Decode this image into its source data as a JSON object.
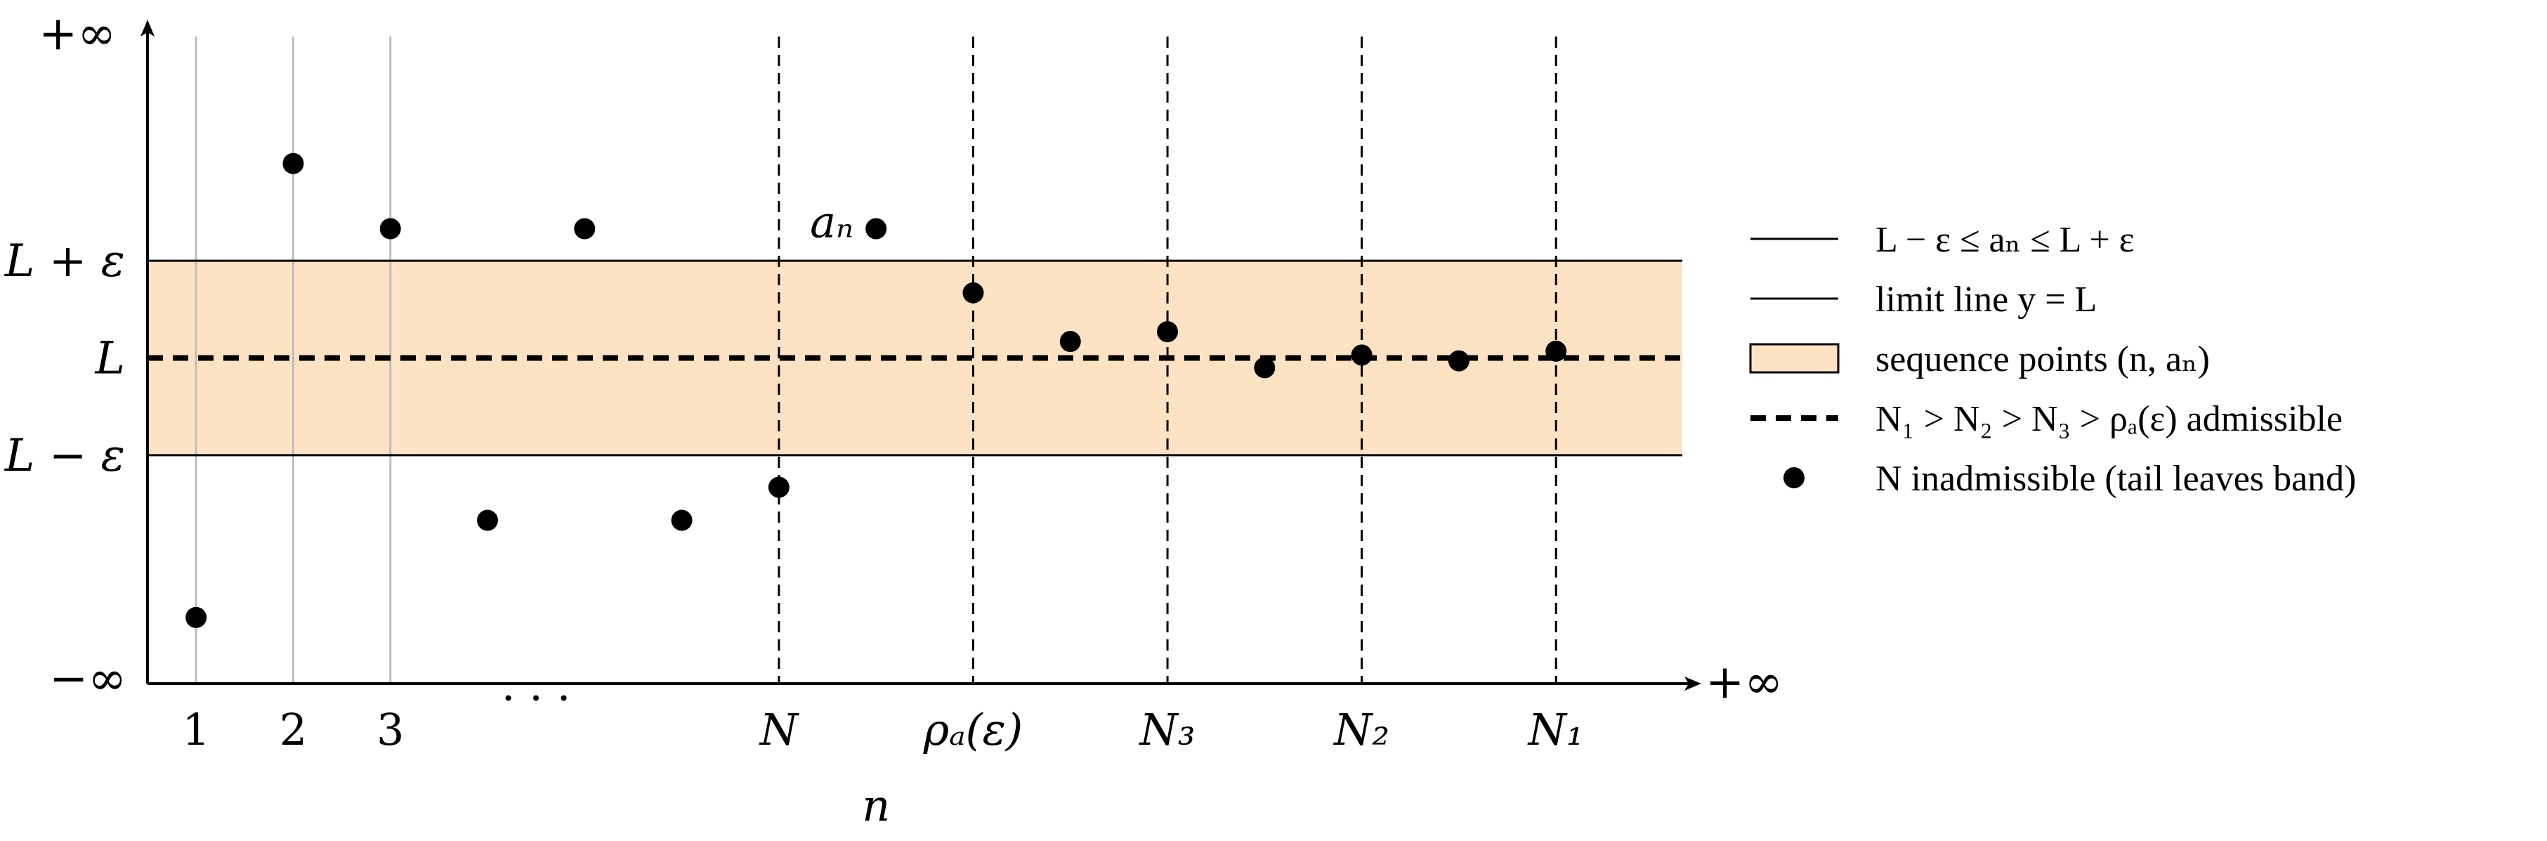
{
  "chart_data": {
    "type": "scatter",
    "colors": {
      "band_fill": "#fde2c4",
      "ink": "#000000",
      "gray_guides": "#bdbdbd"
    },
    "y_axis": {
      "top_label": "+∞",
      "bottom_label": "−∞",
      "ticks": [
        {
          "label": "L + ε",
          "value": 1
        },
        {
          "label": "L",
          "value": 0
        },
        {
          "label": "L − ε",
          "value": -1
        }
      ],
      "ylim": [
        -3.35,
        3.35
      ]
    },
    "x_axis": {
      "right_label": "+∞",
      "xlabel": "n",
      "xlim": [
        0.5,
        16.3
      ],
      "tick_labels": [
        {
          "label": "1",
          "x": 1
        },
        {
          "label": "2",
          "x": 2
        },
        {
          "label": "3",
          "x": 3
        },
        {
          "label": "· · ·",
          "x": 4.5
        },
        {
          "label": "N",
          "x": 7
        },
        {
          "label": "ρₐ(ε)",
          "x": 9
        },
        {
          "label": "N₃",
          "x": 11
        },
        {
          "label": "N₂",
          "x": 13
        },
        {
          "label": "N₁",
          "x": 15
        }
      ]
    },
    "band": {
      "y_low": -1,
      "y_high": 1
    },
    "limit_line_y": 0,
    "gray_guides_x": [
      1,
      2,
      3
    ],
    "dashed_guides_x": [
      7,
      9,
      11,
      13,
      15
    ],
    "points": [
      {
        "x": 1,
        "y": -2.67
      },
      {
        "x": 2,
        "y": 2.0
      },
      {
        "x": 3,
        "y": 1.33
      },
      {
        "x": 4,
        "y": -1.67
      },
      {
        "x": 5,
        "y": 1.33
      },
      {
        "x": 6,
        "y": -1.67
      },
      {
        "x": 7,
        "y": -1.33
      },
      {
        "x": 8,
        "y": 1.33
      },
      {
        "x": 9,
        "y": 0.67
      },
      {
        "x": 10,
        "y": 0.17
      },
      {
        "x": 11,
        "y": 0.27
      },
      {
        "x": 12,
        "y": -0.1
      },
      {
        "x": 13,
        "y": 0.03
      },
      {
        "x": 14,
        "y": -0.03
      },
      {
        "x": 15,
        "y": 0.07
      }
    ],
    "annotation": {
      "label": "aₙ",
      "x": 8,
      "y": 1.33
    },
    "legend": {
      "placement": "right",
      "entries": [
        {
          "label": "L − ε ≤ aₙ ≤ L + ε",
          "symbol": "solid-line"
        },
        {
          "label": "limit line y = L",
          "symbol": "solid-line"
        },
        {
          "label": "sequence points (n, aₙ)",
          "symbol": "band-box"
        },
        {
          "label": "N₁ > N₂ > N₃ > ρₐ(ε) admissible",
          "symbol": "dashed-line"
        },
        {
          "label": "N inadmissible (tail leaves band)",
          "symbol": "dot"
        }
      ]
    }
  }
}
